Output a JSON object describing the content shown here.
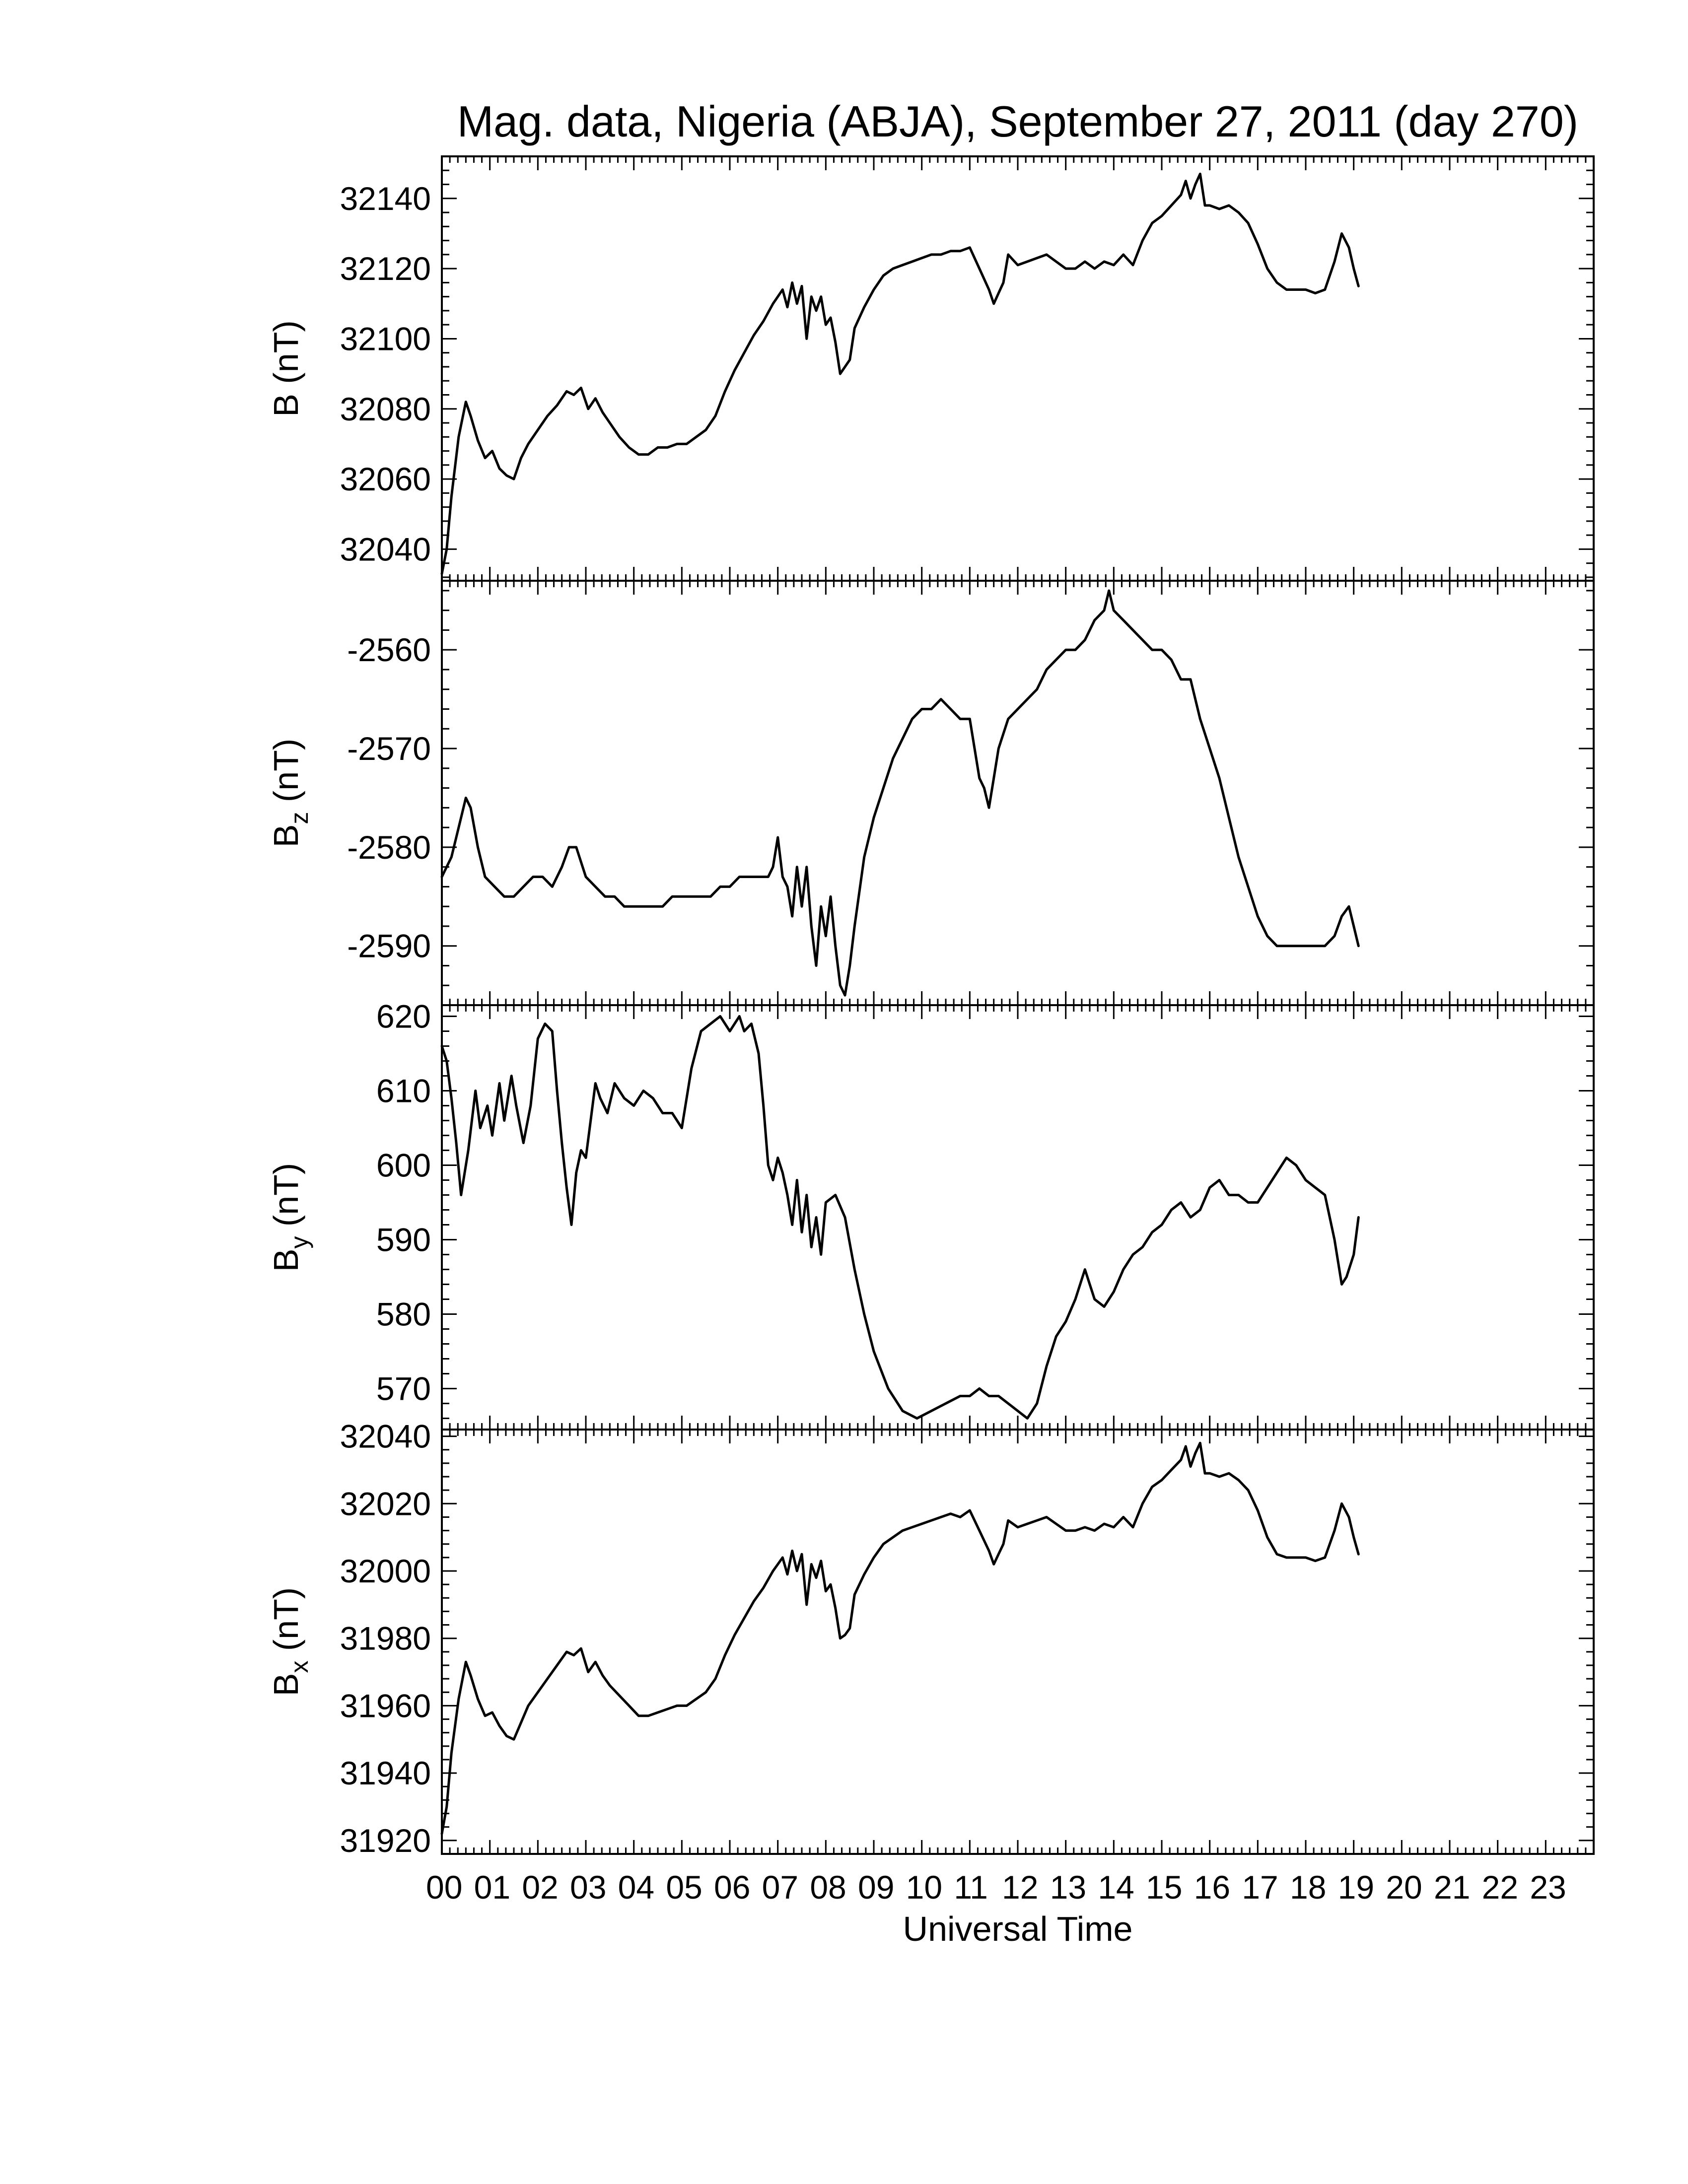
{
  "figure": {
    "title": "Mag. data, Nigeria (ABJA), September 27, 2011 (day 270)",
    "x_label": "Universal Time"
  },
  "chart_data": [
    {
      "type": "line",
      "title": "Mag. data, Nigeria (ABJA), September 27, 2011 (day 270)",
      "ylabel": "B (nT)",
      "ylabel_main": "B",
      "ylabel_sub": "",
      "ylabel_unit": " (nT)",
      "xlabel": "",
      "xlim": [
        0,
        24
      ],
      "ylim": [
        32031,
        32152
      ],
      "yticks": [
        32040,
        32060,
        32080,
        32100,
        32120,
        32140
      ],
      "ytick_labels": [
        "32040",
        "32060",
        "32080",
        "32100",
        "32120",
        "32140"
      ],
      "grid": false,
      "x": [
        0.0,
        0.1,
        0.2,
        0.35,
        0.5,
        0.6,
        0.75,
        0.9,
        1.05,
        1.2,
        1.35,
        1.5,
        1.65,
        1.8,
        2.0,
        2.2,
        2.4,
        2.6,
        2.75,
        2.9,
        3.05,
        3.2,
        3.35,
        3.5,
        3.7,
        3.9,
        4.1,
        4.3,
        4.5,
        4.7,
        4.9,
        5.1,
        5.3,
        5.5,
        5.7,
        5.9,
        6.1,
        6.3,
        6.5,
        6.7,
        6.9,
        7.0,
        7.1,
        7.2,
        7.3,
        7.4,
        7.5,
        7.6,
        7.7,
        7.8,
        7.9,
        8.0,
        8.1,
        8.2,
        8.3,
        8.4,
        8.5,
        8.6,
        8.8,
        9.0,
        9.2,
        9.4,
        9.6,
        9.8,
        10.0,
        10.2,
        10.4,
        10.6,
        10.8,
        11.0,
        11.2,
        11.4,
        11.5,
        11.6,
        11.7,
        11.8,
        12.0,
        12.2,
        12.4,
        12.6,
        12.8,
        13.0,
        13.2,
        13.4,
        13.6,
        13.8,
        14.0,
        14.2,
        14.4,
        14.6,
        14.8,
        15.0,
        15.2,
        15.4,
        15.5,
        15.6,
        15.7,
        15.8,
        15.9,
        16.0,
        16.2,
        16.4,
        16.6,
        16.8,
        17.0,
        17.2,
        17.4,
        17.6,
        17.8,
        18.0,
        18.2,
        18.4,
        18.6,
        18.75,
        18.9,
        19.0,
        19.1
      ],
      "values": [
        32033,
        32040,
        32055,
        32072,
        32082,
        32078,
        32071,
        32066,
        32068,
        32063,
        32061,
        32060,
        32066,
        32070,
        32074,
        32078,
        32081,
        32085,
        32084,
        32086,
        32080,
        32083,
        32079,
        32076,
        32072,
        32069,
        32067,
        32067,
        32069,
        32069,
        32070,
        32070,
        32072,
        32074,
        32078,
        32085,
        32091,
        32096,
        32101,
        32105,
        32110,
        32112,
        32114,
        32109,
        32116,
        32110,
        32115,
        32100,
        32112,
        32108,
        32112,
        32104,
        32106,
        32099,
        32090,
        32092,
        32094,
        32103,
        32109,
        32114,
        32118,
        32120,
        32121,
        32122,
        32123,
        32124,
        32124,
        32125,
        32125,
        32126,
        32120,
        32114,
        32110,
        32113,
        32116,
        32124,
        32121,
        32122,
        32123,
        32124,
        32122,
        32120,
        32120,
        32122,
        32120,
        32122,
        32121,
        32124,
        32121,
        32128,
        32133,
        32135,
        32138,
        32141,
        32145,
        32140,
        32144,
        32147,
        32138,
        32138,
        32137,
        32138,
        32136,
        32133,
        32127,
        32120,
        32116,
        32114,
        32114,
        32114,
        32113,
        32114,
        32122,
        32130,
        32126,
        32120,
        32115
      ]
    },
    {
      "type": "line",
      "ylabel": "Bz (nT)",
      "ylabel_main": "B",
      "ylabel_sub": "z",
      "ylabel_unit": " (nT)",
      "xlabel": "",
      "xlim": [
        0,
        24
      ],
      "ylim": [
        -2596,
        -2553
      ],
      "yticks": [
        -2590,
        -2580,
        -2570,
        -2560
      ],
      "ytick_labels": [
        "-2590",
        "-2580",
        "-2570",
        "-2560"
      ],
      "grid": false,
      "x": [
        0.0,
        0.2,
        0.4,
        0.5,
        0.6,
        0.75,
        0.9,
        1.1,
        1.3,
        1.5,
        1.7,
        1.9,
        2.1,
        2.3,
        2.5,
        2.65,
        2.8,
        3.0,
        3.2,
        3.4,
        3.6,
        3.8,
        4.0,
        4.2,
        4.4,
        4.6,
        4.8,
        5.0,
        5.2,
        5.4,
        5.6,
        5.8,
        6.0,
        6.2,
        6.4,
        6.6,
        6.8,
        6.9,
        7.0,
        7.1,
        7.2,
        7.3,
        7.4,
        7.5,
        7.6,
        7.7,
        7.8,
        7.9,
        8.0,
        8.1,
        8.2,
        8.3,
        8.4,
        8.5,
        8.6,
        8.8,
        9.0,
        9.2,
        9.4,
        9.6,
        9.8,
        10.0,
        10.2,
        10.4,
        10.6,
        10.8,
        11.0,
        11.1,
        11.2,
        11.3,
        11.4,
        11.5,
        11.6,
        11.8,
        12.0,
        12.2,
        12.4,
        12.6,
        12.8,
        13.0,
        13.2,
        13.4,
        13.6,
        13.8,
        13.9,
        14.0,
        14.2,
        14.4,
        14.6,
        14.8,
        15.0,
        15.2,
        15.4,
        15.6,
        15.8,
        16.0,
        16.2,
        16.4,
        16.6,
        16.8,
        17.0,
        17.2,
        17.4,
        17.6,
        17.8,
        18.0,
        18.2,
        18.4,
        18.6,
        18.75,
        18.9,
        19.0,
        19.1
      ],
      "values": [
        -2583,
        -2581,
        -2577,
        -2575,
        -2576,
        -2580,
        -2583,
        -2584,
        -2585,
        -2585,
        -2584,
        -2583,
        -2583,
        -2584,
        -2582,
        -2580,
        -2580,
        -2583,
        -2584,
        -2585,
        -2585,
        -2586,
        -2586,
        -2586,
        -2586,
        -2586,
        -2585,
        -2585,
        -2585,
        -2585,
        -2585,
        -2584,
        -2584,
        -2583,
        -2583,
        -2583,
        -2583,
        -2582,
        -2579,
        -2583,
        -2584,
        -2587,
        -2582,
        -2586,
        -2582,
        -2588,
        -2592,
        -2586,
        -2589,
        -2585,
        -2590,
        -2594,
        -2595,
        -2592,
        -2588,
        -2581,
        -2577,
        -2574,
        -2571,
        -2569,
        -2567,
        -2566,
        -2566,
        -2565,
        -2566,
        -2567,
        -2567,
        -2570,
        -2573,
        -2574,
        -2576,
        -2573,
        -2570,
        -2567,
        -2566,
        -2565,
        -2564,
        -2562,
        -2561,
        -2560,
        -2560,
        -2559,
        -2557,
        -2556,
        -2554,
        -2556,
        -2557,
        -2558,
        -2559,
        -2560,
        -2560,
        -2561,
        -2563,
        -2563,
        -2567,
        -2570,
        -2573,
        -2577,
        -2581,
        -2584,
        -2587,
        -2589,
        -2590,
        -2590,
        -2590,
        -2590,
        -2590,
        -2590,
        -2589,
        -2587,
        -2586,
        -2588,
        -2590
      ]
    },
    {
      "type": "line",
      "ylabel": "By (nT)",
      "ylabel_main": "B",
      "ylabel_sub": "y",
      "ylabel_unit": " (nT)",
      "xlabel": "",
      "xlim": [
        0,
        24
      ],
      "ylim": [
        564.5,
        621.5
      ],
      "yticks": [
        570,
        580,
        590,
        600,
        610,
        620
      ],
      "ytick_labels": [
        "570",
        "580",
        "590",
        "600",
        "610",
        "620"
      ],
      "grid": false,
      "x": [
        0.0,
        0.1,
        0.2,
        0.3,
        0.4,
        0.55,
        0.7,
        0.8,
        0.95,
        1.05,
        1.2,
        1.3,
        1.45,
        1.55,
        1.7,
        1.85,
        2.0,
        2.15,
        2.3,
        2.4,
        2.5,
        2.6,
        2.7,
        2.8,
        2.9,
        3.0,
        3.1,
        3.2,
        3.3,
        3.45,
        3.6,
        3.8,
        4.0,
        4.2,
        4.4,
        4.6,
        4.8,
        5.0,
        5.2,
        5.4,
        5.6,
        5.8,
        6.0,
        6.2,
        6.3,
        6.45,
        6.6,
        6.7,
        6.8,
        6.9,
        7.0,
        7.1,
        7.2,
        7.3,
        7.4,
        7.5,
        7.6,
        7.7,
        7.8,
        7.9,
        8.0,
        8.2,
        8.4,
        8.6,
        8.8,
        9.0,
        9.3,
        9.6,
        9.9,
        10.2,
        10.5,
        10.8,
        11.0,
        11.2,
        11.4,
        11.6,
        11.8,
        12.0,
        12.2,
        12.4,
        12.6,
        12.8,
        13.0,
        13.2,
        13.4,
        13.6,
        13.8,
        14.0,
        14.2,
        14.4,
        14.6,
        14.8,
        15.0,
        15.2,
        15.4,
        15.6,
        15.8,
        16.0,
        16.2,
        16.4,
        16.6,
        16.8,
        17.0,
        17.2,
        17.4,
        17.6,
        17.8,
        18.0,
        18.2,
        18.4,
        18.6,
        18.75,
        18.85,
        19.0,
        19.1
      ],
      "values": [
        616,
        614,
        609,
        603,
        596,
        602,
        610,
        605,
        608,
        604,
        611,
        606,
        612,
        608,
        603,
        608,
        617,
        619,
        618,
        610,
        603,
        597,
        592,
        599,
        602,
        601,
        606,
        611,
        609,
        607,
        611,
        609,
        608,
        610,
        609,
        607,
        607,
        605,
        613,
        618,
        619,
        620,
        618,
        620,
        618,
        619,
        615,
        608,
        600,
        598,
        601,
        599,
        596,
        592,
        598,
        591,
        596,
        589,
        593,
        588,
        595,
        596,
        593,
        586,
        580,
        575,
        570,
        567,
        566,
        567,
        568,
        569,
        569,
        570,
        569,
        569,
        568,
        567,
        566,
        568,
        573,
        577,
        579,
        582,
        586,
        582,
        581,
        583,
        586,
        588,
        589,
        591,
        592,
        594,
        595,
        593,
        594,
        597,
        598,
        596,
        596,
        595,
        595,
        597,
        599,
        601,
        600,
        598,
        597,
        596,
        590,
        584,
        585,
        588,
        593
      ]
    },
    {
      "type": "line",
      "ylabel": "Bx (nT)",
      "ylabel_main": "B",
      "ylabel_sub": "x",
      "ylabel_unit": " (nT)",
      "xlabel": "Universal Time",
      "xlim": [
        0,
        24
      ],
      "ylim": [
        31916,
        32042
      ],
      "yticks": [
        31920,
        31940,
        31960,
        31980,
        32000,
        32020,
        32040
      ],
      "ytick_labels": [
        "31920",
        "31940",
        "31960",
        "31980",
        "32000",
        "32020",
        "32040"
      ],
      "xticks": [
        0,
        1,
        2,
        3,
        4,
        5,
        6,
        7,
        8,
        9,
        10,
        11,
        12,
        13,
        14,
        15,
        16,
        17,
        18,
        19,
        20,
        21,
        22,
        23
      ],
      "xtick_labels": [
        "00",
        "01",
        "02",
        "03",
        "04",
        "05",
        "06",
        "07",
        "08",
        "09",
        "10",
        "11",
        "12",
        "13",
        "14",
        "15",
        "16",
        "17",
        "18",
        "19",
        "20",
        "21",
        "22",
        "23"
      ],
      "grid": false,
      "x": [
        0.0,
        0.1,
        0.2,
        0.35,
        0.5,
        0.6,
        0.75,
        0.9,
        1.05,
        1.2,
        1.35,
        1.5,
        1.65,
        1.8,
        2.0,
        2.2,
        2.4,
        2.6,
        2.75,
        2.9,
        3.05,
        3.2,
        3.35,
        3.5,
        3.7,
        3.9,
        4.1,
        4.3,
        4.5,
        4.7,
        4.9,
        5.1,
        5.3,
        5.5,
        5.7,
        5.9,
        6.1,
        6.3,
        6.5,
        6.7,
        6.9,
        7.0,
        7.1,
        7.2,
        7.3,
        7.4,
        7.5,
        7.6,
        7.7,
        7.8,
        7.9,
        8.0,
        8.1,
        8.2,
        8.3,
        8.4,
        8.5,
        8.6,
        8.8,
        9.0,
        9.2,
        9.4,
        9.6,
        9.8,
        10.0,
        10.2,
        10.4,
        10.6,
        10.8,
        11.0,
        11.2,
        11.4,
        11.5,
        11.6,
        11.7,
        11.8,
        12.0,
        12.2,
        12.4,
        12.6,
        12.8,
        13.0,
        13.2,
        13.4,
        13.6,
        13.8,
        14.0,
        14.2,
        14.4,
        14.6,
        14.8,
        15.0,
        15.2,
        15.4,
        15.5,
        15.6,
        15.7,
        15.8,
        15.9,
        16.0,
        16.2,
        16.4,
        16.6,
        16.8,
        17.0,
        17.2,
        17.4,
        17.6,
        17.8,
        18.0,
        18.2,
        18.4,
        18.6,
        18.75,
        18.9,
        19.0,
        19.1
      ],
      "values": [
        31922,
        31930,
        31946,
        31962,
        31973,
        31969,
        31962,
        31957,
        31958,
        31954,
        31951,
        31950,
        31955,
        31960,
        31964,
        31968,
        31972,
        31976,
        31975,
        31977,
        31970,
        31973,
        31969,
        31966,
        31963,
        31960,
        31957,
        31957,
        31958,
        31959,
        31960,
        31960,
        31962,
        31964,
        31968,
        31975,
        31981,
        31986,
        31991,
        31995,
        32000,
        32002,
        32004,
        31999,
        32006,
        32000,
        32005,
        31990,
        32002,
        31998,
        32003,
        31994,
        31996,
        31989,
        31980,
        31981,
        31983,
        31993,
        31999,
        32004,
        32008,
        32010,
        32012,
        32013,
        32014,
        32015,
        32016,
        32017,
        32016,
        32018,
        32012,
        32006,
        32002,
        32005,
        32008,
        32015,
        32013,
        32014,
        32015,
        32016,
        32014,
        32012,
        32012,
        32013,
        32012,
        32014,
        32013,
        32016,
        32013,
        32020,
        32025,
        32027,
        32030,
        32033,
        32037,
        32031,
        32035,
        32038,
        32029,
        32029,
        32028,
        32029,
        32027,
        32024,
        32018,
        32010,
        32005,
        32004,
        32004,
        32004,
        32003,
        32004,
        32012,
        32020,
        32016,
        32010,
        32005
      ]
    }
  ]
}
